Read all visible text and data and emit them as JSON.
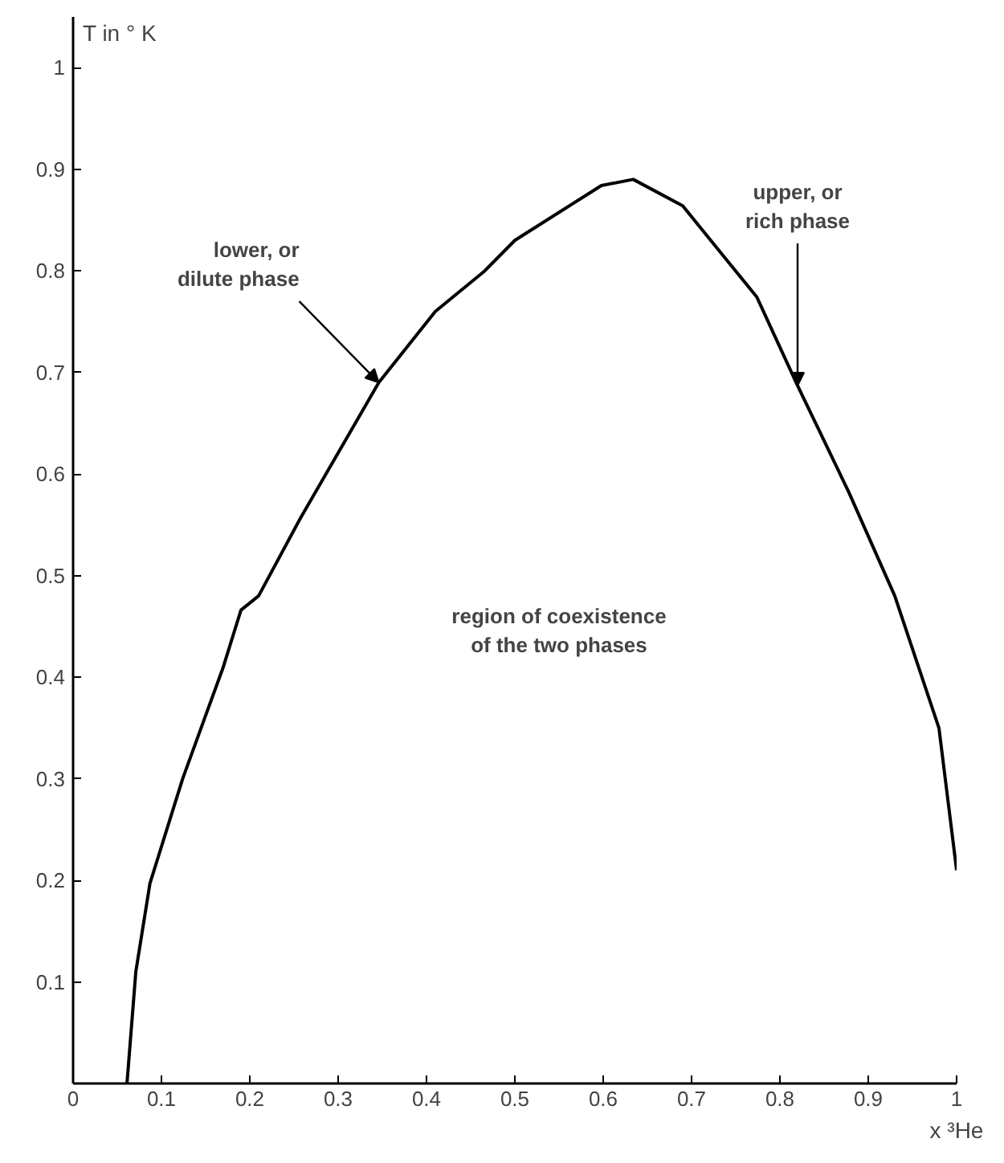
{
  "chart_data": {
    "type": "line",
    "xlabel": "x ³He",
    "ylabel": "T in ° K",
    "x": [
      0.061,
      0.071,
      0.087,
      0.124,
      0.17,
      0.19,
      0.21,
      0.257,
      0.346,
      0.41,
      0.466,
      0.5,
      0.598,
      0.634,
      0.69,
      0.718,
      0.774,
      0.82,
      0.878,
      0.93,
      0.98,
      1.0
    ],
    "series": [
      {
        "color": "#000000",
        "values": [
          0,
          0.11,
          0.197,
          0.3,
          0.41,
          0.466,
          0.48,
          0.556,
          0.69,
          0.76,
          0.8,
          0.83,
          0.884,
          0.89,
          0.864,
          0.834,
          0.774,
          0.687,
          0.582,
          0.48,
          0.35,
          0.21
        ]
      }
    ],
    "xlim": [
      0,
      1
    ],
    "xticks": [
      0,
      0.1,
      0.2,
      0.3,
      0.4,
      0.5,
      0.6,
      0.7,
      0.8,
      0.9,
      1
    ],
    "ylim": [
      0,
      1.05
    ],
    "yticks": [
      {
        "value": 0,
        "label": null
      },
      0.1,
      0.2,
      0.3,
      0.4,
      0.5,
      0.6,
      0.7,
      0.8,
      0.9,
      1
    ],
    "grid": false,
    "marker": "none",
    "line_style": "solid",
    "annotations": [
      {
        "text": "lower, or\ndilute phase",
        "x": 0.346,
        "y": 0.69
      },
      {
        "text": "upper, or\nrich phase",
        "x": 0.82,
        "y": 0.687
      },
      "region of coexistence\nof the two phases"
    ]
  }
}
